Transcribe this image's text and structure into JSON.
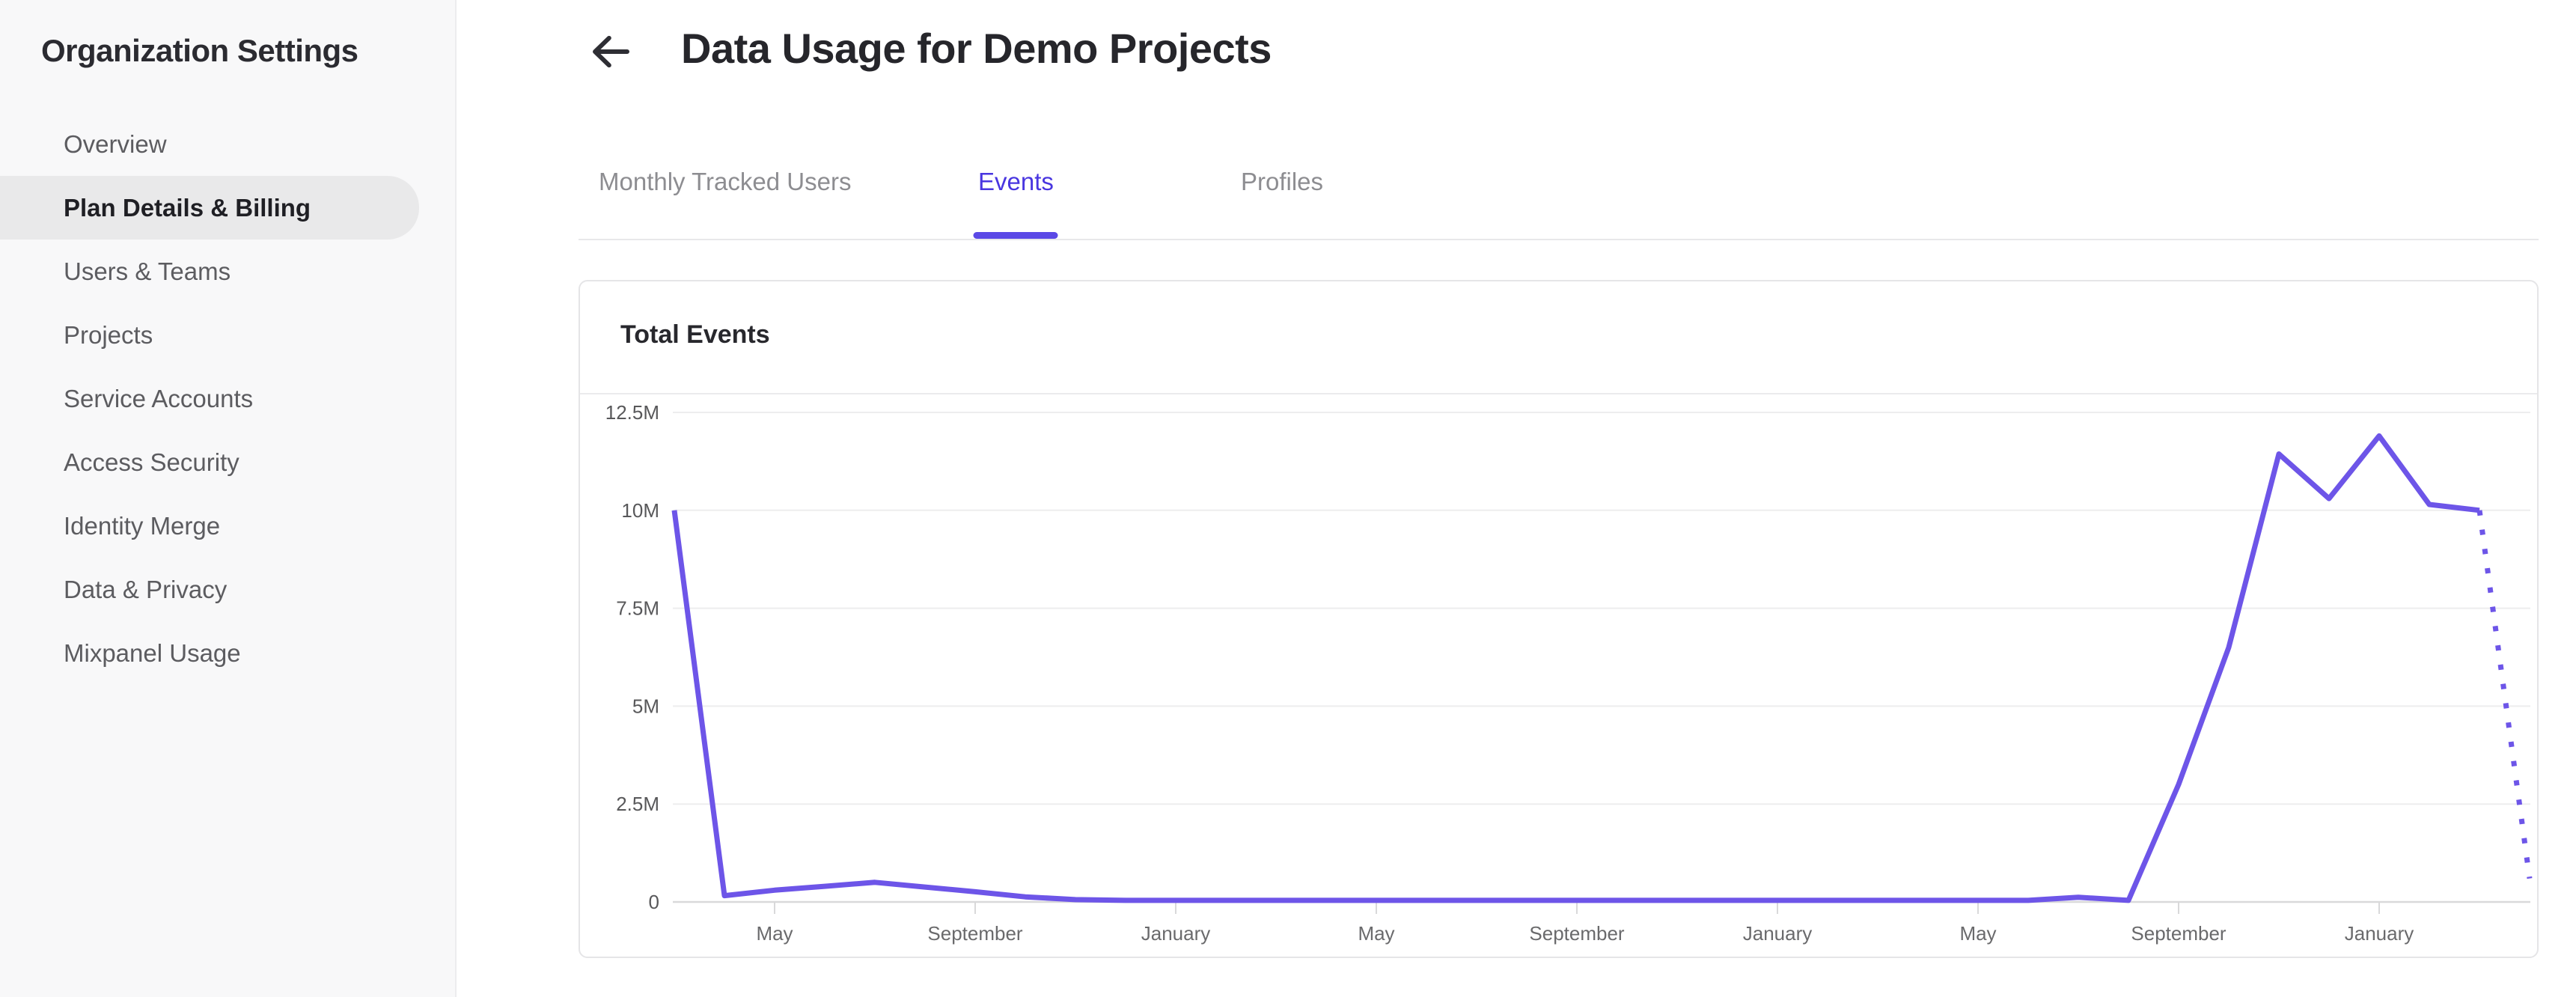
{
  "sidebar": {
    "title": "Organization Settings",
    "items": [
      {
        "label": "Overview",
        "active": false
      },
      {
        "label": "Plan Details & Billing",
        "active": true
      },
      {
        "label": "Users & Teams",
        "active": false
      },
      {
        "label": "Projects",
        "active": false
      },
      {
        "label": "Service Accounts",
        "active": false
      },
      {
        "label": "Access Security",
        "active": false
      },
      {
        "label": "Identity Merge",
        "active": false
      },
      {
        "label": "Data & Privacy",
        "active": false
      },
      {
        "label": "Mixpanel Usage",
        "active": false
      }
    ]
  },
  "header": {
    "back_icon": "left-arrow",
    "title": "Data Usage for Demo Projects"
  },
  "tabs": [
    {
      "label": "Monthly Tracked Users",
      "active": false
    },
    {
      "label": "Events",
      "active": true
    },
    {
      "label": "Profiles",
      "active": false
    }
  ],
  "card": {
    "title": "Total Events"
  },
  "chart_data": {
    "type": "line",
    "title": "Total Events",
    "series_name": "Total Events",
    "x_unit": "month",
    "n_points": 38,
    "ylim": [
      0,
      12.5
    ],
    "grid": "horizontal",
    "y_ticks": [
      {
        "label": "12.5M",
        "value": 12.5
      },
      {
        "label": "10M",
        "value": 10
      },
      {
        "label": "7.5M",
        "value": 7.5
      },
      {
        "label": "5M",
        "value": 5
      },
      {
        "label": "2.5M",
        "value": 2.5
      },
      {
        "label": "0",
        "value": 0
      }
    ],
    "x_ticks": [
      {
        "label": "May",
        "month_index": 2
      },
      {
        "label": "September",
        "month_index": 6
      },
      {
        "label": "January",
        "month_index": 10
      },
      {
        "label": "May",
        "month_index": 14
      },
      {
        "label": "September",
        "month_index": 18
      },
      {
        "label": "January",
        "month_index": 22
      },
      {
        "label": "May",
        "month_index": 26
      },
      {
        "label": "September",
        "month_index": 30
      },
      {
        "label": "January",
        "month_index": 34
      }
    ],
    "values_millions": [
      10.0,
      0.16,
      0.3,
      0.4,
      0.5,
      0.38,
      0.26,
      0.13,
      0.06,
      0.04,
      0.04,
      0.04,
      0.04,
      0.04,
      0.04,
      0.04,
      0.04,
      0.04,
      0.04,
      0.04,
      0.04,
      0.04,
      0.04,
      0.04,
      0.04,
      0.04,
      0.04,
      0.04,
      0.12,
      0.04,
      3.0,
      6.5,
      11.44,
      10.3,
      11.9,
      10.15,
      10.0,
      0.6
    ],
    "dotted_tail_points": 1,
    "dotted_tail_meaning": "incomplete current period"
  },
  "colors": {
    "accent_tab": "#4936e0",
    "tab_underline": "#5b49e6",
    "chart_line": "#6d55e8",
    "active_item_bg": "#e9e9ea",
    "gridline": "#ededee",
    "axis": "#d9d9da",
    "y_label": "#58585a",
    "x_label": "#6a6a6c"
  }
}
